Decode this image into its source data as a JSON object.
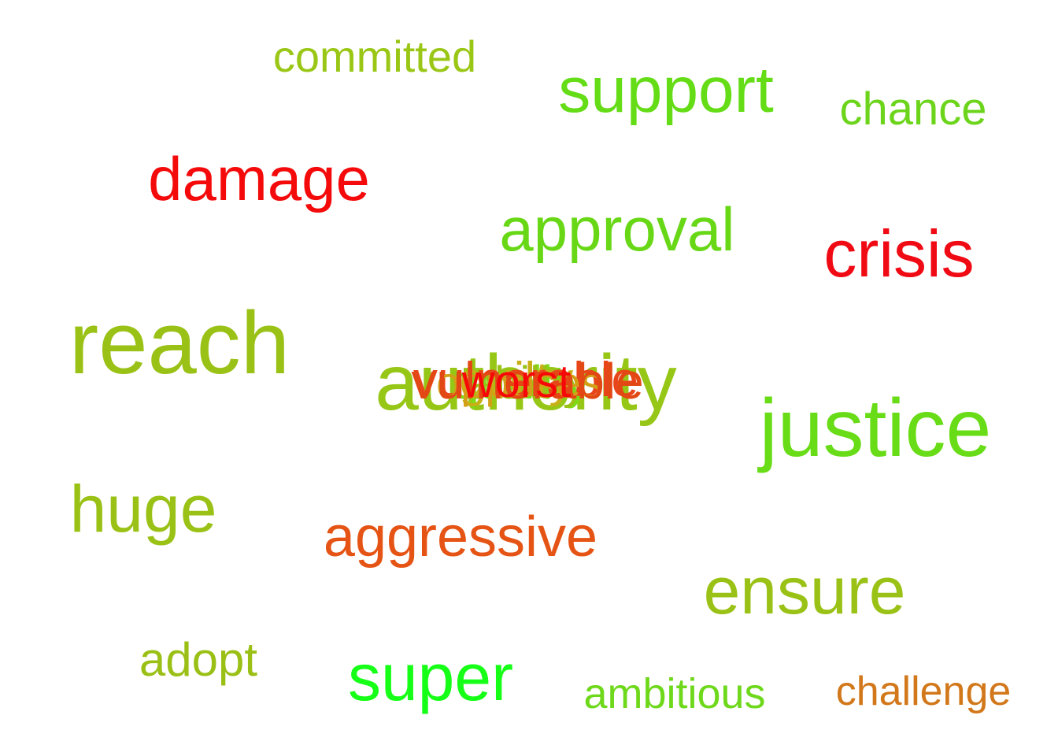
{
  "words": [
    {
      "text": "committed",
      "color": "#9AC716"
    },
    {
      "text": "support",
      "color": "#64DC16"
    },
    {
      "text": "chance",
      "color": "#6CD51B"
    },
    {
      "text": "damage",
      "color": "#F40A0A"
    },
    {
      "text": "approval",
      "color": "#68D816"
    },
    {
      "text": "crisis",
      "color": "#F00A14"
    },
    {
      "text": "reach",
      "color": "#9AC116"
    },
    {
      "text": "justice",
      "color": "#68DC16"
    },
    {
      "text": "huge",
      "color": "#9AC216"
    },
    {
      "text": "aggressive",
      "color": "#E55414"
    },
    {
      "text": "ensure",
      "color": "#9AC216"
    },
    {
      "text": "adopt",
      "color": "#9AC016"
    },
    {
      "text": "super",
      "color": "#16FF16"
    },
    {
      "text": "ambitious",
      "color": "#6ED81B"
    },
    {
      "text": "challenge",
      "color": "#D2781B"
    }
  ],
  "cluster": [
    {
      "text": "authority",
      "color": "#96C616"
    },
    {
      "text": "quality",
      "color": "#7ADC16"
    },
    {
      "text": "guilty",
      "color": "#C9AF16"
    },
    {
      "text": "ability",
      "color": "#9AC216"
    },
    {
      "text": "vulnerable",
      "color": "#E8461A"
    },
    {
      "text": "opposes",
      "color": "#D2A016"
    },
    {
      "text": "vulnerable",
      "color": "#E24814"
    },
    {
      "text": "worst",
      "color": "#F70808"
    }
  ]
}
